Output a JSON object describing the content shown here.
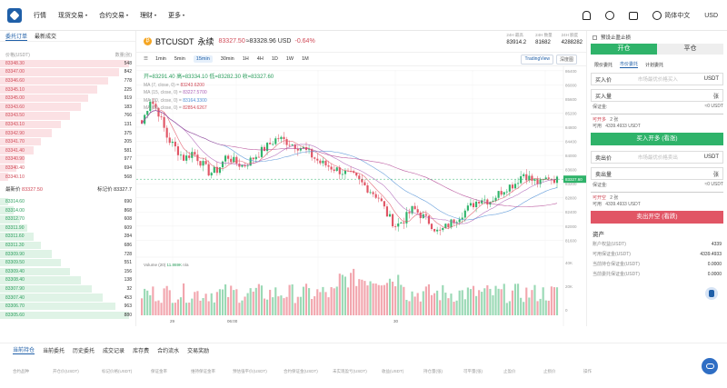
{
  "nav": {
    "items": [
      {
        "label": "行情",
        "dropdown": false
      },
      {
        "label": "现货交易",
        "dropdown": true
      },
      {
        "label": "合约交易",
        "dropdown": true
      },
      {
        "label": "理财",
        "dropdown": true
      },
      {
        "label": "更多",
        "dropdown": true
      }
    ],
    "language": "简体中文",
    "currency": "USD"
  },
  "orderbook": {
    "tabs": [
      "委托订单",
      "最新成交"
    ],
    "header": {
      "price": "价格(USDT)",
      "qty": "数量(张)"
    },
    "asks": [
      {
        "price": "83348.30",
        "qty": "548",
        "depth": 0.95
      },
      {
        "price": "83347.00",
        "qty": "842",
        "depth": 0.88
      },
      {
        "price": "83346.60",
        "qty": "778",
        "depth": 0.8
      },
      {
        "price": "83345.10",
        "qty": "225",
        "depth": 0.72
      },
      {
        "price": "83345.00",
        "qty": "919",
        "depth": 0.65
      },
      {
        "price": "83343.60",
        "qty": "183",
        "depth": 0.6
      },
      {
        "price": "83343.50",
        "qty": "766",
        "depth": 0.52
      },
      {
        "price": "83343.10",
        "qty": "131",
        "depth": 0.45
      },
      {
        "price": "83342.90",
        "qty": "375",
        "depth": 0.38
      },
      {
        "price": "83341.70",
        "qty": "205",
        "depth": 0.3
      },
      {
        "price": "83341.40",
        "qty": "581",
        "depth": 0.25
      },
      {
        "price": "83340.90",
        "qty": "977",
        "depth": 0.18
      },
      {
        "price": "83340.40",
        "qty": "694",
        "depth": 0.12
      },
      {
        "price": "83340.10",
        "qty": "568",
        "depth": 0.06
      }
    ],
    "mid": {
      "label_latest": "最新价",
      "latest": "83327.50",
      "label_mark": "标记价",
      "mark": "83327.7"
    },
    "bids": [
      {
        "price": "83314.60",
        "qty": "690",
        "depth": 0.06
      },
      {
        "price": "83314.00",
        "qty": "868",
        "depth": 0.1
      },
      {
        "price": "83312.70",
        "qty": "608",
        "depth": 0.15
      },
      {
        "price": "83311.90",
        "qty": "609",
        "depth": 0.2
      },
      {
        "price": "83311.60",
        "qty": "284",
        "depth": 0.25
      },
      {
        "price": "83311.30",
        "qty": "686",
        "depth": 0.3
      },
      {
        "price": "83309.90",
        "qty": "728",
        "depth": 0.38
      },
      {
        "price": "83309.50",
        "qty": "551",
        "depth": 0.45
      },
      {
        "price": "83309.40",
        "qty": "156",
        "depth": 0.52
      },
      {
        "price": "83308.40",
        "qty": "138",
        "depth": 0.6
      },
      {
        "price": "83307.90",
        "qty": "32",
        "depth": 0.68
      },
      {
        "price": "83307.40",
        "qty": "453",
        "depth": 0.76
      },
      {
        "price": "83306.70",
        "qty": "963",
        "depth": 0.85
      },
      {
        "price": "83305.60",
        "qty": "880",
        "depth": 0.95
      }
    ]
  },
  "pair": {
    "coin_symbol": "₿",
    "name": "BTCUSDT",
    "type": "永续",
    "price": "83327.50",
    "price_usd": "≈83328.96 USD",
    "change": "-0.64%",
    "stats": [
      {
        "label": "24H 最高",
        "value": "83914.2"
      },
      {
        "label": "24H 数量",
        "value": "81682"
      },
      {
        "label": "24H 额度",
        "value": "4288282"
      }
    ]
  },
  "chart_toolbar": {
    "timeframes": [
      "1min",
      "5min",
      "15min",
      "30min",
      "1H",
      "4H",
      "1D",
      "1W",
      "1M"
    ],
    "active": "15min",
    "buttons": [
      "TradingView",
      "深度图"
    ]
  },
  "chart_data": {
    "type": "candlestick",
    "legend": {
      "ohlc": "开=83291.40  高=83334.10  低=83282.30  收=83327.60",
      "ma": [
        {
          "label": "MA (7, close, 0) =",
          "value": "83243.6200"
        },
        {
          "label": "MA (15, close, 0) =",
          "value": "83227.5700"
        },
        {
          "label": "MA (30, close, 0) =",
          "value": "83164.3300"
        },
        {
          "label": "MA (60, close, 0) =",
          "value": "82854.6267"
        }
      ]
    },
    "y_ticks": [
      86400,
      86000,
      85600,
      85200,
      84800,
      84400,
      84000,
      83600,
      83200,
      82800,
      82400,
      82000,
      81600
    ],
    "ylim": [
      81480,
      86420
    ],
    "x_ticks": [
      "29",
      "06:00",
      "30"
    ],
    "current_price_label": "83327.60",
    "volume_label": "Volume (20)",
    "volume_value": "11.869K",
    "volume_na": "n/a",
    "volume_ticks": [
      "40K",
      "20K",
      "0"
    ],
    "close_path": [
      84900,
      85600,
      85200,
      84500,
      84200,
      83900,
      84100,
      83800,
      83500,
      83600,
      84000,
      83800,
      83700,
      83900,
      84100,
      84300,
      84500,
      84400,
      84300,
      84200,
      84000,
      83800,
      83700,
      83600,
      83500,
      83400,
      83200,
      83000,
      82800,
      82300,
      82000,
      82200,
      82500,
      82300,
      82100,
      81800,
      82000,
      82200,
      82400,
      82600,
      82800,
      82700,
      82900,
      83100,
      83200,
      83500,
      83300,
      83200,
      83400,
      83300
    ]
  },
  "trade": {
    "stop_loss_label": "预设止盈止损",
    "tabs": [
      "开仓",
      "平仓"
    ],
    "order_tabs": [
      "限价委托",
      "市价委托",
      "计划委托"
    ],
    "active_order_tab": "市价委托",
    "buy": {
      "price_label": "买入价",
      "price_placeholder": "市场最优价格买入",
      "unit": "USDT",
      "qty_label": "买入量",
      "qty_unit": "张",
      "margin_label": "保证金:",
      "margin_value": "≈0 USDT",
      "openable_label": "可开多",
      "openable_value": "2 张",
      "available_label": "可用",
      "available_value": "4339.4933 USDT",
      "button": "买入开多 (看涨)"
    },
    "sell": {
      "price_label": "卖出价",
      "price_placeholder": "市场最优价格卖出",
      "unit": "USDT",
      "qty_label": "卖出量",
      "qty_unit": "张",
      "margin_label": "保证金:",
      "margin_value": "≈0 USDT",
      "openable_label": "可开空",
      "openable_value": "2 张",
      "available_label": "可用",
      "available_value": "4339.4933 USDT",
      "button": "卖出开空 (看跌)"
    },
    "assets": {
      "title": "资产",
      "rows": [
        {
          "label": "账户权益(USDT)",
          "value": "4339"
        },
        {
          "label": "可用保证金(USDT)",
          "value": "4339.4933"
        },
        {
          "label": "当前持仓保证金(USDT)",
          "value": "0.0000"
        },
        {
          "label": "当前委托保证金(USDT)",
          "value": "0.0000"
        }
      ]
    }
  },
  "bottom": {
    "tabs": [
      "当前持仓",
      "当前委托",
      "历史委托",
      "成交记录",
      "库存费",
      "合约流水",
      "交易奖励"
    ],
    "active": "当前持仓",
    "headers": [
      "合约品种",
      "开仓价(USDT)",
      "标记价格(USDT)",
      "保证金率",
      "维持保证金率",
      "预估强平价(USDT)",
      "合约保证金(USDT)",
      "未实现盈亏(USDT)",
      "收益(USDT)",
      "持仓量(张)",
      "可平量(张)",
      "止盈价",
      "止损价",
      "操作"
    ]
  }
}
